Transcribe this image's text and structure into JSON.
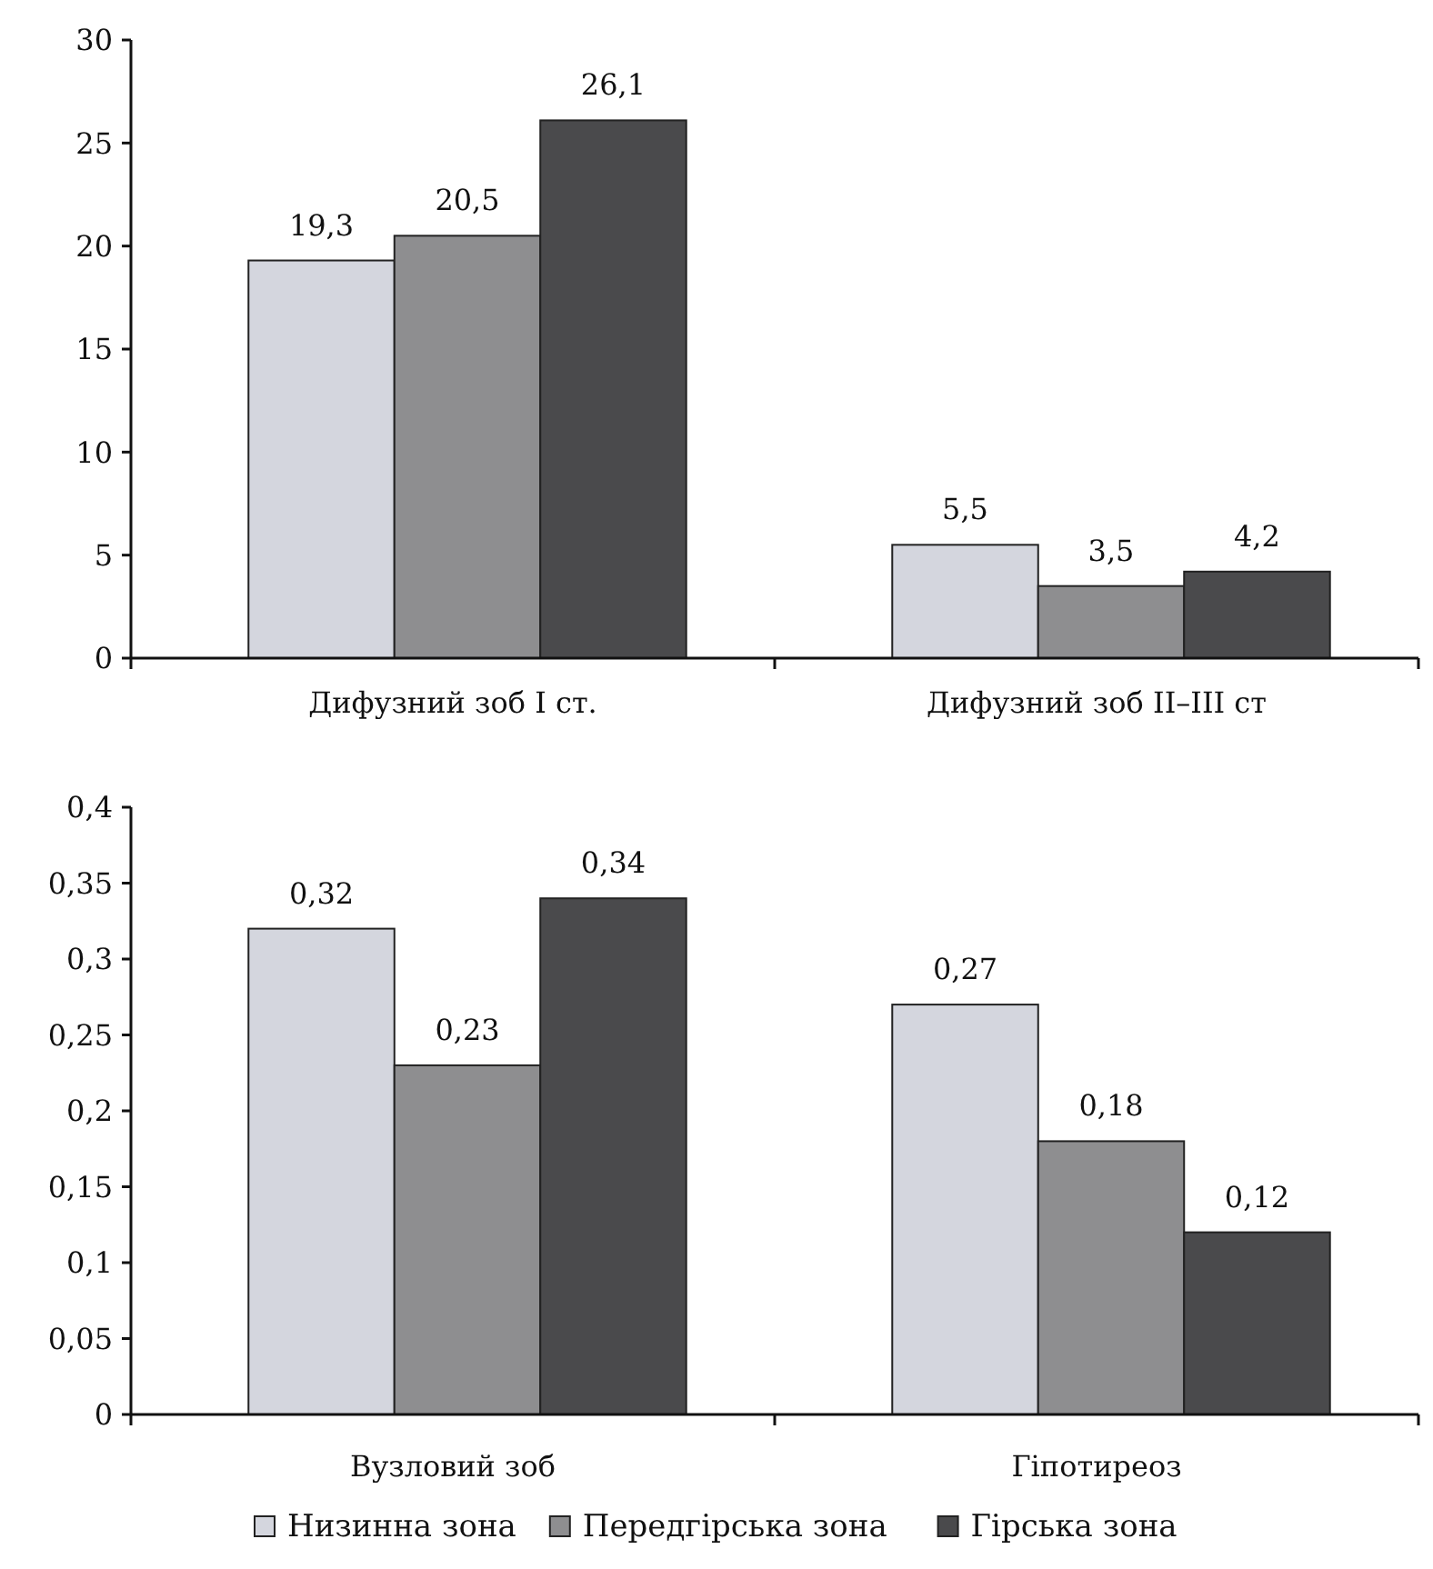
{
  "chart_data": [
    {
      "type": "bar",
      "categories": [
        "Дифузний зоб I ст.",
        "Дифузний зоб II–III ст"
      ],
      "ylim": [
        0,
        30
      ],
      "yticks": [
        0,
        5,
        10,
        15,
        20,
        25,
        30
      ],
      "legend": false,
      "grid": false,
      "series": [
        {
          "color": "#d4d6de",
          "values": [
            19.3,
            5.5
          ],
          "value_labels": [
            "19,3",
            "5,5"
          ]
        },
        {
          "color": "#8e8e90",
          "values": [
            20.5,
            3.5
          ],
          "value_labels": [
            "20,5",
            "3,5"
          ]
        },
        {
          "color": "#4a4a4c",
          "values": [
            26.1,
            4.2
          ],
          "value_labels": [
            "26,1",
            "4,2"
          ]
        }
      ]
    },
    {
      "type": "bar",
      "categories": [
        "Вузловий зоб",
        "Гіпотиреоз"
      ],
      "ylim": [
        0,
        0.4
      ],
      "yticks": [
        0,
        {
          "value": 0.05,
          "label": "0,05"
        },
        {
          "value": 0.1,
          "label": "0,1"
        },
        {
          "value": 0.15,
          "label": "0,15"
        },
        {
          "value": 0.2,
          "label": "0,2"
        },
        {
          "value": 0.25,
          "label": "0,25"
        },
        {
          "value": 0.3,
          "label": "0,3"
        },
        {
          "value": 0.35,
          "label": "0,35"
        },
        {
          "value": 0.4,
          "label": "0,4"
        }
      ],
      "legend": "bottom",
      "grid": false,
      "series": [
        {
          "name": "Низинна зона",
          "color": "#d4d6de",
          "values": [
            0.32,
            0.27
          ],
          "value_labels": [
            "0,32",
            "0,27"
          ]
        },
        {
          "name": "Передгірська зона",
          "color": "#8e8e90",
          "values": [
            0.23,
            0.18
          ],
          "value_labels": [
            "0,23",
            "0,18"
          ]
        },
        {
          "name": "Гірська зона",
          "color": "#4a4a4c",
          "values": [
            0.34,
            0.12
          ],
          "value_labels": [
            "0,34",
            "0,12"
          ]
        }
      ]
    }
  ]
}
